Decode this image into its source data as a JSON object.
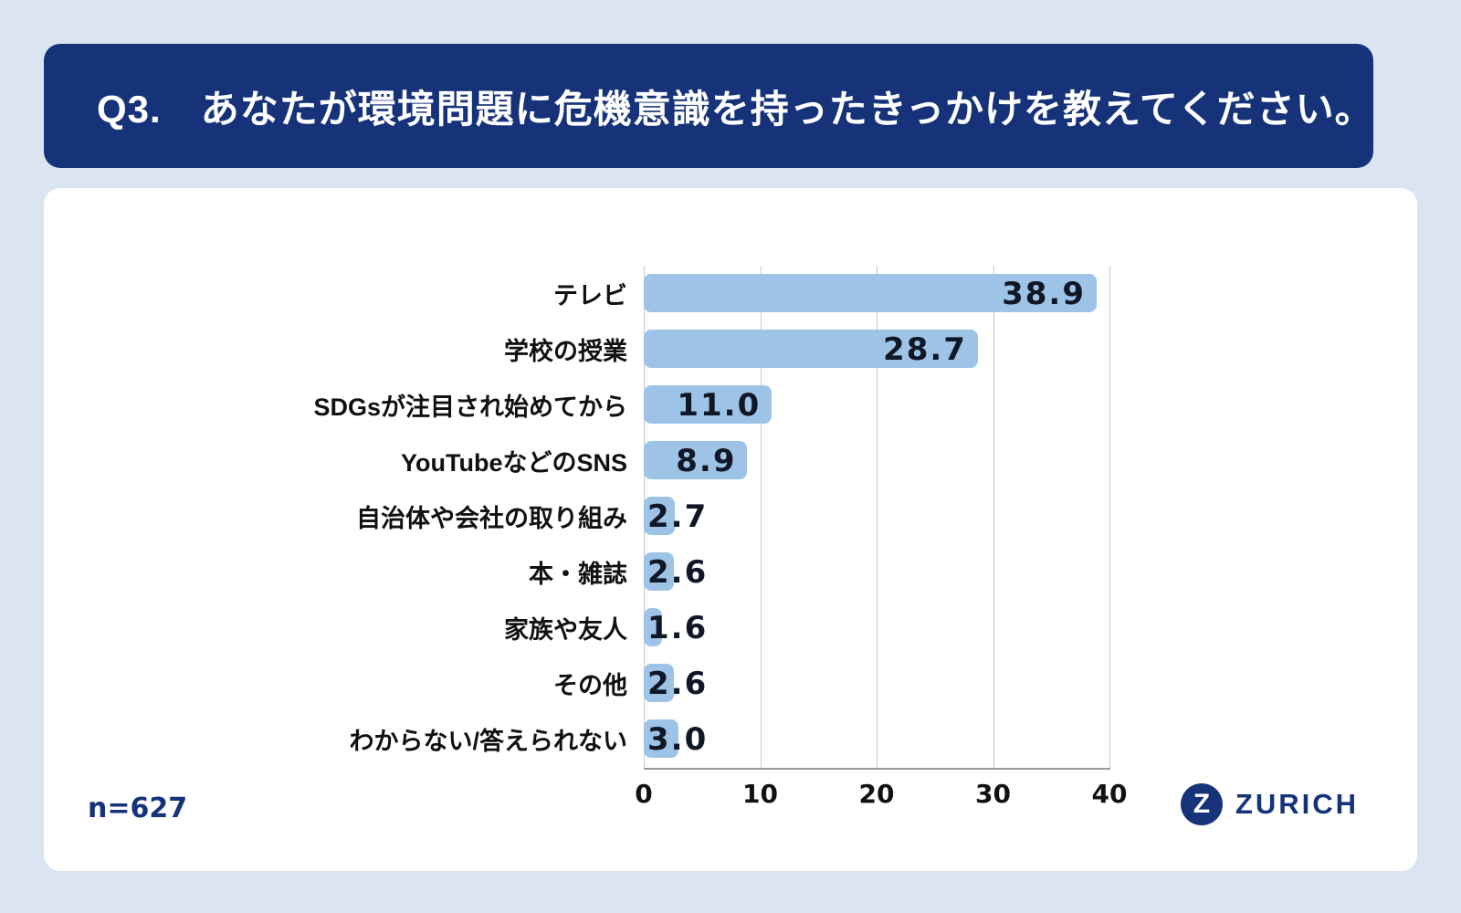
{
  "page": {
    "background": "#dbe5f2"
  },
  "header": {
    "title": "Q3.　あなたが環境問題に危機意識を持ったきっかけを教えてください。",
    "background": "#16337a"
  },
  "chart_data": {
    "type": "bar",
    "orientation": "horizontal",
    "title": "",
    "xlabel": "",
    "ylabel": "",
    "categories": [
      "テレビ",
      "学校の授業",
      "SDGsが注目され始めてから",
      "YouTubeなどのSNS",
      "自治体や会社の取り組み",
      "本・雑誌",
      "家族や友人",
      "その他",
      "わからない/答えられない"
    ],
    "values": [
      38.9,
      28.7,
      11.0,
      8.9,
      2.7,
      2.6,
      1.6,
      2.6,
      3.0
    ],
    "value_labels": [
      "38.9",
      "28.7",
      "11.0",
      "8.9",
      "2.7",
      "2.6",
      "1.6",
      "2.6",
      "3.0"
    ],
    "xlim": [
      0,
      40
    ],
    "x_ticks": [
      0,
      10,
      20,
      30,
      40
    ],
    "grid": true,
    "bar_color": "#9dc3e6",
    "value_label_color": "#101726"
  },
  "footer": {
    "sample_size": "n=627",
    "logo_letter": "Z",
    "logo_text": "ZURICH",
    "logo_color": "#16337a"
  }
}
